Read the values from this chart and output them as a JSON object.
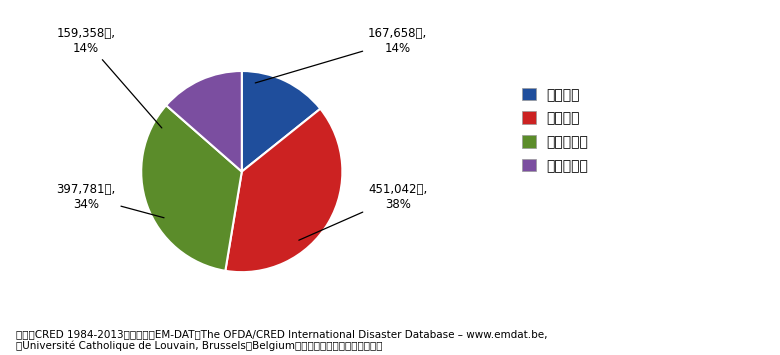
{
  "labels": [
    "高所得国",
    "低所得国",
    "中低所得国",
    "中高所得国"
  ],
  "values": [
    167658,
    451042,
    397781,
    159358
  ],
  "colors": [
    "#1F4E9C",
    "#CC2222",
    "#5B8C2A",
    "#7B4EA0"
  ],
  "startangle": 90,
  "background_color": "#ffffff",
  "label_texts": [
    "167,658人,\n14%",
    "451,042人,\n38%",
    "397,781人,\n34%",
    "159,358人,\n14%"
  ],
  "footnote_line1": "出典：CRED 1984-2013年の合計。EM-DAT：The OFDA/CRED International Disaster Database – www.emdat.be,",
  "footnote_line2": "　Université Catholique de Louvain, Brussels（Belgium）の資料をもとに内閣府作成。"
}
